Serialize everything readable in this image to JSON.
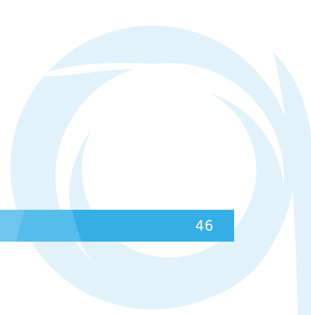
{
  "page": {
    "number": "46"
  },
  "colors": {
    "background": "#ffffff",
    "ring": "#e1f2fb",
    "band": "#35aee6",
    "number_text": "#ffffff"
  },
  "decoration": {
    "motif": "concentric-ring-watermark-icon"
  }
}
